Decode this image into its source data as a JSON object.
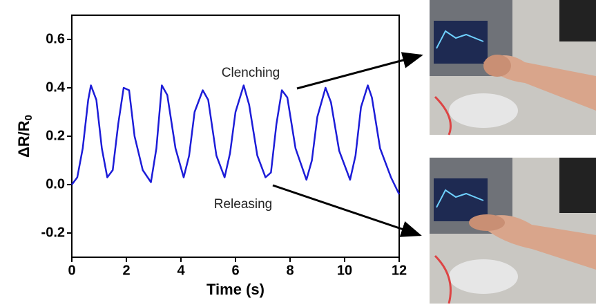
{
  "chart_data": {
    "type": "line",
    "x_label": "Time (s)",
    "y_label": {
      "text": "ΔR/R",
      "subscript": "0"
    },
    "annotations": [
      "Clenching",
      "Releasing"
    ],
    "xlim": [
      0,
      12
    ],
    "xticks": [
      0,
      2,
      4,
      6,
      8,
      10,
      12
    ],
    "ylim": [
      -0.3,
      0.7
    ],
    "yticks": [
      -0.2,
      {
        "value": 0,
        "label": "0.0"
      },
      0.2,
      0.4,
      0.6
    ],
    "grid": false,
    "color": "#1c1cd8",
    "x": [
      0,
      0.2,
      0.4,
      0.6,
      0.7,
      0.9,
      1.1,
      1.3,
      1.5,
      1.7,
      1.9,
      2.1,
      2.3,
      2.6,
      2.9,
      3.1,
      3.3,
      3.5,
      3.8,
      4.1,
      4.3,
      4.5,
      4.8,
      5.0,
      5.3,
      5.6,
      5.8,
      6.0,
      6.3,
      6.5,
      6.8,
      7.1,
      7.3,
      7.5,
      7.7,
      7.9,
      8.2,
      8.6,
      8.8,
      9.0,
      9.3,
      9.5,
      9.8,
      10.2,
      10.4,
      10.6,
      10.85,
      11.0,
      11.3,
      11.7,
      12.0
    ],
    "values": [
      0.0,
      0.03,
      0.15,
      0.35,
      0.41,
      0.35,
      0.15,
      0.03,
      0.06,
      0.25,
      0.4,
      0.39,
      0.2,
      0.06,
      0.01,
      0.15,
      0.41,
      0.37,
      0.15,
      0.03,
      0.12,
      0.3,
      0.39,
      0.35,
      0.12,
      0.03,
      0.13,
      0.3,
      0.41,
      0.33,
      0.12,
      0.03,
      0.05,
      0.25,
      0.39,
      0.36,
      0.15,
      0.02,
      0.1,
      0.28,
      0.4,
      0.34,
      0.14,
      0.02,
      0.12,
      0.32,
      0.41,
      0.36,
      0.15,
      0.03,
      -0.04
    ]
  }
}
